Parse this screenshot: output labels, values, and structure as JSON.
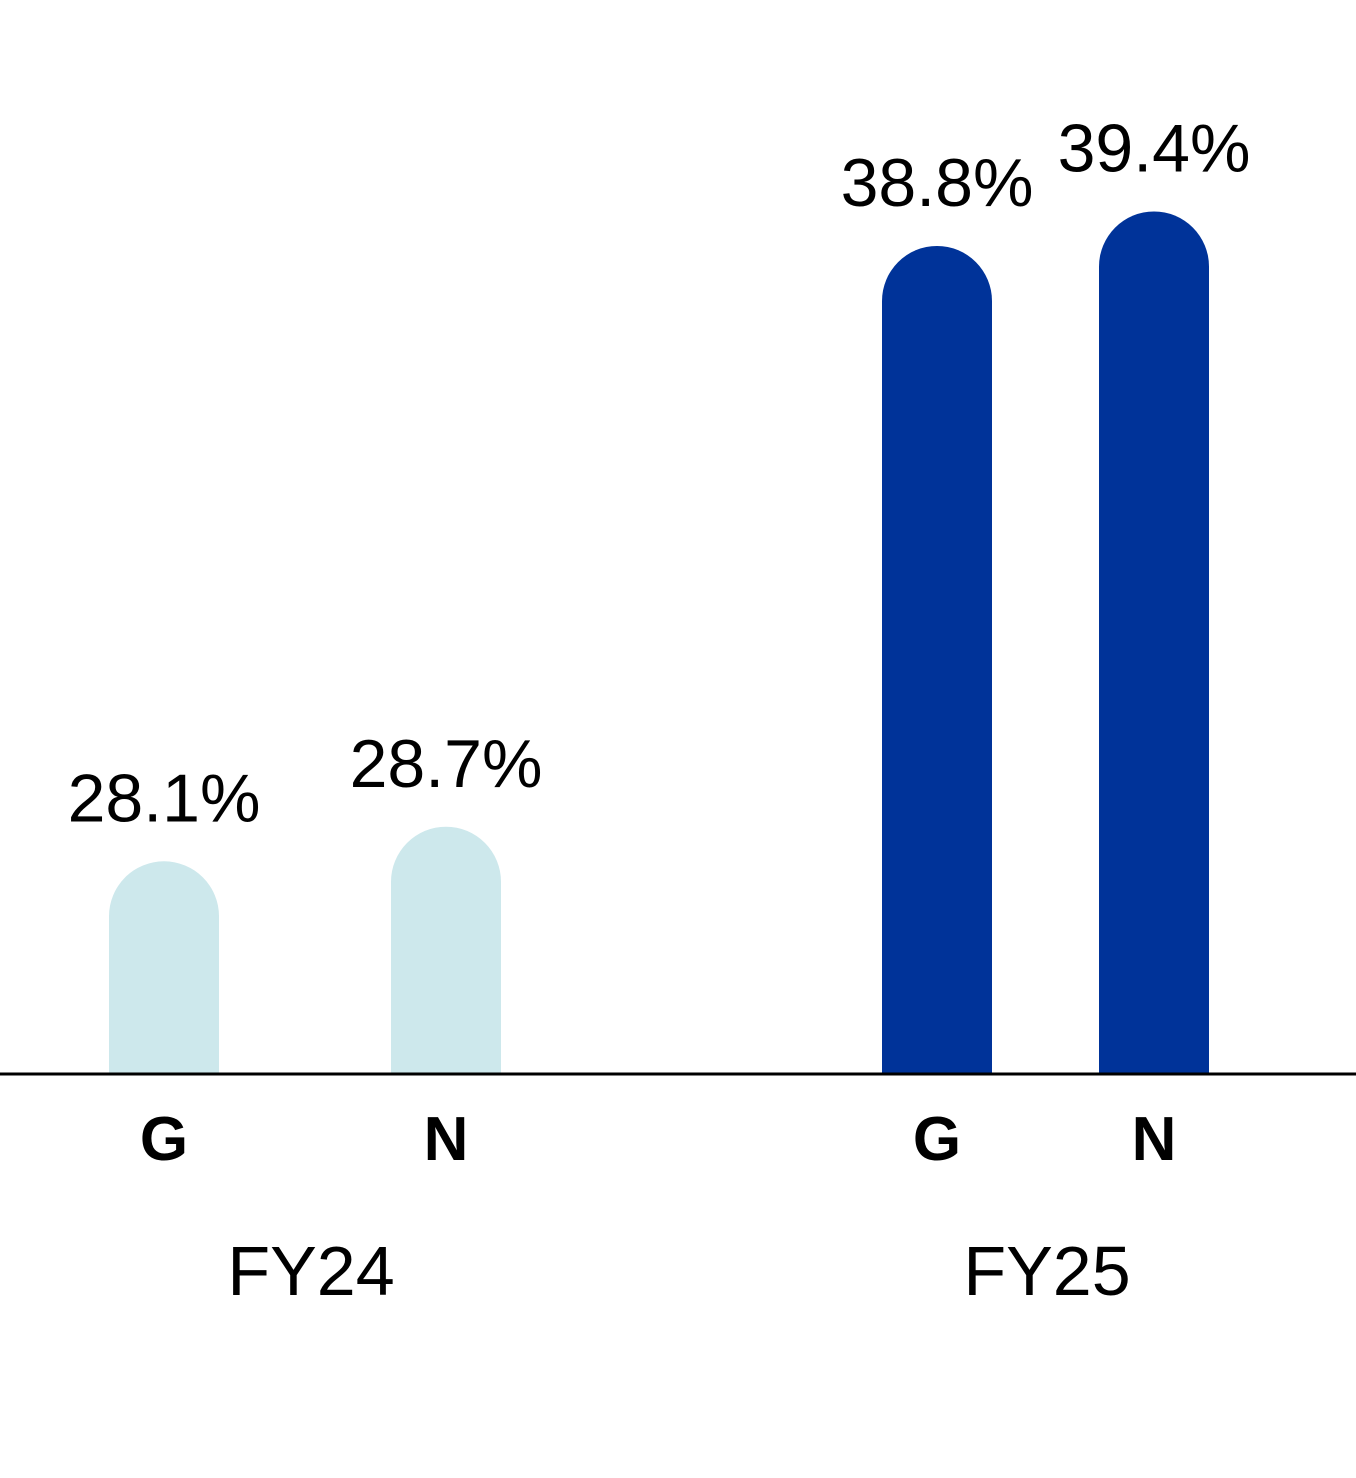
{
  "chart_data": {
    "type": "bar",
    "groups": [
      {
        "label": "FY24",
        "color": "#cde8ec",
        "bars": [
          {
            "category": "G",
            "value": 28.1,
            "label": "28.1%"
          },
          {
            "category": "N",
            "value": 28.7,
            "label": "28.7%"
          }
        ]
      },
      {
        "label": "FY25",
        "color": "#003399",
        "bars": [
          {
            "category": "G",
            "value": 38.8,
            "label": "38.8%"
          },
          {
            "category": "N",
            "value": 39.4,
            "label": "39.4%"
          }
        ]
      }
    ],
    "axis_line_color": "#000000",
    "legend": "none",
    "grid": false
  }
}
